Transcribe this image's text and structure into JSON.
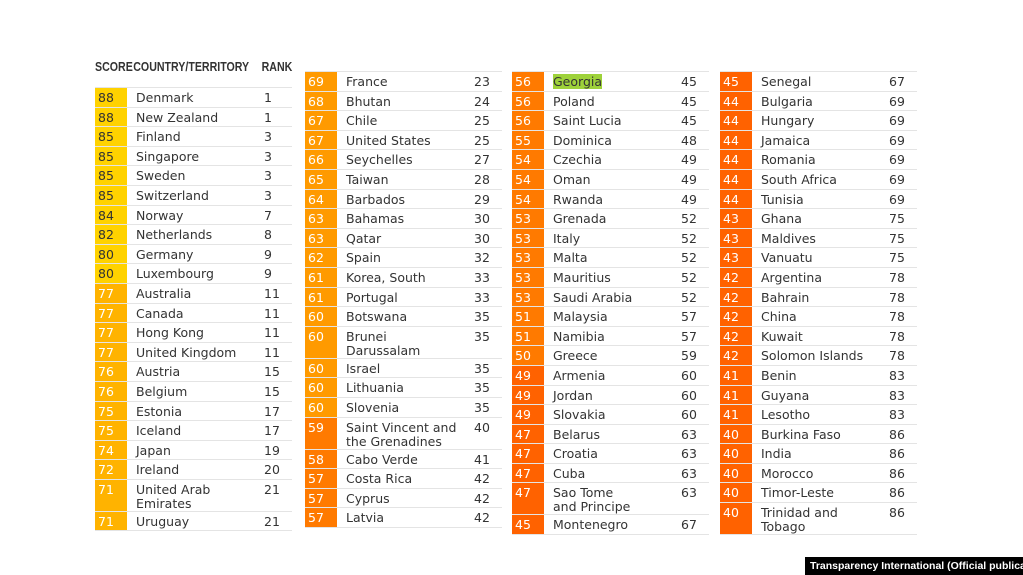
{
  "headers": {
    "score": "SCORE",
    "country": "COUNTRY/TERRITORY",
    "rank": "RANK"
  },
  "palette": {
    "80-100": "#ffd200",
    "70-79": "#ffb300",
    "60-69": "#ff9a00",
    "50-59": "#ff7a00",
    "0-49": "#ff6200",
    "score_text_light": "#ffffff",
    "score_text_dark": "#333333",
    "highlight": "#9ed23a"
  },
  "highlighted_country": "Georgia",
  "columns": [
    [
      {
        "score": "88",
        "country": "Denmark",
        "rank": "1"
      },
      {
        "score": "88",
        "country": "New Zealand",
        "rank": "1"
      },
      {
        "score": "85",
        "country": "Finland",
        "rank": "3"
      },
      {
        "score": "85",
        "country": "Singapore",
        "rank": "3"
      },
      {
        "score": "85",
        "country": "Sweden",
        "rank": "3"
      },
      {
        "score": "85",
        "country": "Switzerland",
        "rank": "3"
      },
      {
        "score": "84",
        "country": "Norway",
        "rank": "7"
      },
      {
        "score": "82",
        "country": "Netherlands",
        "rank": "8"
      },
      {
        "score": "80",
        "country": "Germany",
        "rank": "9"
      },
      {
        "score": "80",
        "country": "Luxembourg",
        "rank": "9"
      },
      {
        "score": "77",
        "country": "Australia",
        "rank": "11"
      },
      {
        "score": "77",
        "country": "Canada",
        "rank": "11"
      },
      {
        "score": "77",
        "country": "Hong Kong",
        "rank": "11"
      },
      {
        "score": "77",
        "country": "United Kingdom",
        "rank": "11"
      },
      {
        "score": "76",
        "country": "Austria",
        "rank": "15"
      },
      {
        "score": "76",
        "country": "Belgium",
        "rank": "15"
      },
      {
        "score": "75",
        "country": "Estonia",
        "rank": "17"
      },
      {
        "score": "75",
        "country": "Iceland",
        "rank": "17"
      },
      {
        "score": "74",
        "country": "Japan",
        "rank": "19"
      },
      {
        "score": "72",
        "country": "Ireland",
        "rank": "20"
      },
      {
        "score": "71",
        "country": "United Arab\nEmirates",
        "rank": "21"
      },
      {
        "score": "71",
        "country": "Uruguay",
        "rank": "21"
      }
    ],
    [
      {
        "score": "69",
        "country": "France",
        "rank": "23"
      },
      {
        "score": "68",
        "country": "Bhutan",
        "rank": "24"
      },
      {
        "score": "67",
        "country": "Chile",
        "rank": "25"
      },
      {
        "score": "67",
        "country": "United States",
        "rank": "25"
      },
      {
        "score": "66",
        "country": "Seychelles",
        "rank": "27"
      },
      {
        "score": "65",
        "country": "Taiwan",
        "rank": "28"
      },
      {
        "score": "64",
        "country": "Barbados",
        "rank": "29"
      },
      {
        "score": "63",
        "country": "Bahamas",
        "rank": "30"
      },
      {
        "score": "63",
        "country": "Qatar",
        "rank": "30"
      },
      {
        "score": "62",
        "country": "Spain",
        "rank": "32"
      },
      {
        "score": "61",
        "country": "Korea, South",
        "rank": "33"
      },
      {
        "score": "61",
        "country": "Portugal",
        "rank": "33"
      },
      {
        "score": "60",
        "country": "Botswana",
        "rank": "35"
      },
      {
        "score": "60",
        "country": "Brunei\nDarussalam",
        "rank": "35"
      },
      {
        "score": "60",
        "country": "Israel",
        "rank": "35"
      },
      {
        "score": "60",
        "country": "Lithuania",
        "rank": "35"
      },
      {
        "score": "60",
        "country": "Slovenia",
        "rank": "35"
      },
      {
        "score": "59",
        "country": "Saint Vincent and\nthe Grenadines",
        "rank": "40"
      },
      {
        "score": "58",
        "country": "Cabo Verde",
        "rank": "41"
      },
      {
        "score": "57",
        "country": "Costa Rica",
        "rank": "42"
      },
      {
        "score": "57",
        "country": "Cyprus",
        "rank": "42"
      },
      {
        "score": "57",
        "country": "Latvia",
        "rank": "42"
      }
    ],
    [
      {
        "score": "56",
        "country": "Georgia",
        "rank": "45"
      },
      {
        "score": "56",
        "country": "Poland",
        "rank": "45"
      },
      {
        "score": "56",
        "country": "Saint Lucia",
        "rank": "45"
      },
      {
        "score": "55",
        "country": "Dominica",
        "rank": "48"
      },
      {
        "score": "54",
        "country": "Czechia",
        "rank": "49"
      },
      {
        "score": "54",
        "country": "Oman",
        "rank": "49"
      },
      {
        "score": "54",
        "country": "Rwanda",
        "rank": "49"
      },
      {
        "score": "53",
        "country": "Grenada",
        "rank": "52"
      },
      {
        "score": "53",
        "country": "Italy",
        "rank": "52"
      },
      {
        "score": "53",
        "country": "Malta",
        "rank": "52"
      },
      {
        "score": "53",
        "country": "Mauritius",
        "rank": "52"
      },
      {
        "score": "53",
        "country": "Saudi Arabia",
        "rank": "52"
      },
      {
        "score": "51",
        "country": "Malaysia",
        "rank": "57"
      },
      {
        "score": "51",
        "country": "Namibia",
        "rank": "57"
      },
      {
        "score": "50",
        "country": "Greece",
        "rank": "59"
      },
      {
        "score": "49",
        "country": "Armenia",
        "rank": "60"
      },
      {
        "score": "49",
        "country": "Jordan",
        "rank": "60"
      },
      {
        "score": "49",
        "country": "Slovakia",
        "rank": "60"
      },
      {
        "score": "47",
        "country": "Belarus",
        "rank": "63"
      },
      {
        "score": "47",
        "country": "Croatia",
        "rank": "63"
      },
      {
        "score": "47",
        "country": "Cuba",
        "rank": "63"
      },
      {
        "score": "47",
        "country": "Sao Tome\nand Principe",
        "rank": "63"
      },
      {
        "score": "45",
        "country": "Montenegro",
        "rank": "67"
      }
    ],
    [
      {
        "score": "45",
        "country": "Senegal",
        "rank": "67"
      },
      {
        "score": "44",
        "country": "Bulgaria",
        "rank": "69"
      },
      {
        "score": "44",
        "country": "Hungary",
        "rank": "69"
      },
      {
        "score": "44",
        "country": "Jamaica",
        "rank": "69"
      },
      {
        "score": "44",
        "country": "Romania",
        "rank": "69"
      },
      {
        "score": "44",
        "country": "South Africa",
        "rank": "69"
      },
      {
        "score": "44",
        "country": "Tunisia",
        "rank": "69"
      },
      {
        "score": "43",
        "country": "Ghana",
        "rank": "75"
      },
      {
        "score": "43",
        "country": "Maldives",
        "rank": "75"
      },
      {
        "score": "43",
        "country": "Vanuatu",
        "rank": "75"
      },
      {
        "score": "42",
        "country": "Argentina",
        "rank": "78"
      },
      {
        "score": "42",
        "country": "Bahrain",
        "rank": "78"
      },
      {
        "score": "42",
        "country": "China",
        "rank": "78"
      },
      {
        "score": "42",
        "country": "Kuwait",
        "rank": "78"
      },
      {
        "score": "42",
        "country": "Solomon Islands",
        "rank": "78"
      },
      {
        "score": "41",
        "country": "Benin",
        "rank": "83"
      },
      {
        "score": "41",
        "country": "Guyana",
        "rank": "83"
      },
      {
        "score": "41",
        "country": "Lesotho",
        "rank": "83"
      },
      {
        "score": "40",
        "country": "Burkina Faso",
        "rank": "86"
      },
      {
        "score": "40",
        "country": "India",
        "rank": "86"
      },
      {
        "score": "40",
        "country": "Morocco",
        "rank": "86"
      },
      {
        "score": "40",
        "country": "Timor-Leste",
        "rank": "86"
      },
      {
        "score": "40",
        "country": "Trinidad and\nTobago",
        "rank": "86"
      }
    ]
  ],
  "credit": "Transparency International (Official publication)"
}
